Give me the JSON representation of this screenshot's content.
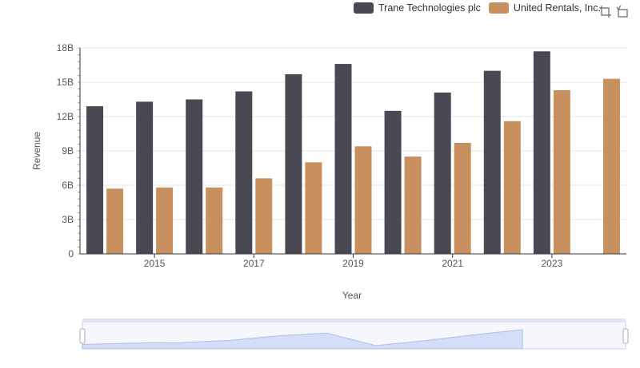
{
  "chart_data": {
    "type": "bar",
    "categories": [
      "2014",
      "2015",
      "2016",
      "2017",
      "2018",
      "2019",
      "2020",
      "2021",
      "2022",
      "2023",
      "2024"
    ],
    "series": [
      {
        "name": "Trane Technologies plc",
        "color": "#494953",
        "values": [
          12.9,
          13.3,
          13.5,
          14.2,
          15.7,
          16.6,
          12.5,
          14.1,
          16.0,
          17.7,
          null
        ]
      },
      {
        "name": "United Rentals, Inc.",
        "color": "#c8905e",
        "values": [
          5.7,
          5.8,
          5.8,
          6.6,
          8.0,
          9.4,
          8.5,
          9.7,
          11.6,
          14.3,
          15.3
        ]
      }
    ],
    "xlabel": "Year",
    "ylabel": "Revenue",
    "ylim": [
      0,
      18
    ],
    "y_ticks": [
      "0",
      "3B",
      "6B",
      "9B",
      "12B",
      "15B",
      "18B"
    ],
    "x_tick_labels": [
      "2015",
      "2017",
      "2019",
      "2021",
      "2023"
    ],
    "grid": true,
    "legend_position": "top-right"
  },
  "toolbox": {
    "zoom_icon": "zoom-icon",
    "restore_icon": "restore-icon"
  },
  "colors": {
    "slider_fill": "#d5def8",
    "slider_border": "#c9d3ec",
    "axis": "#333333"
  }
}
